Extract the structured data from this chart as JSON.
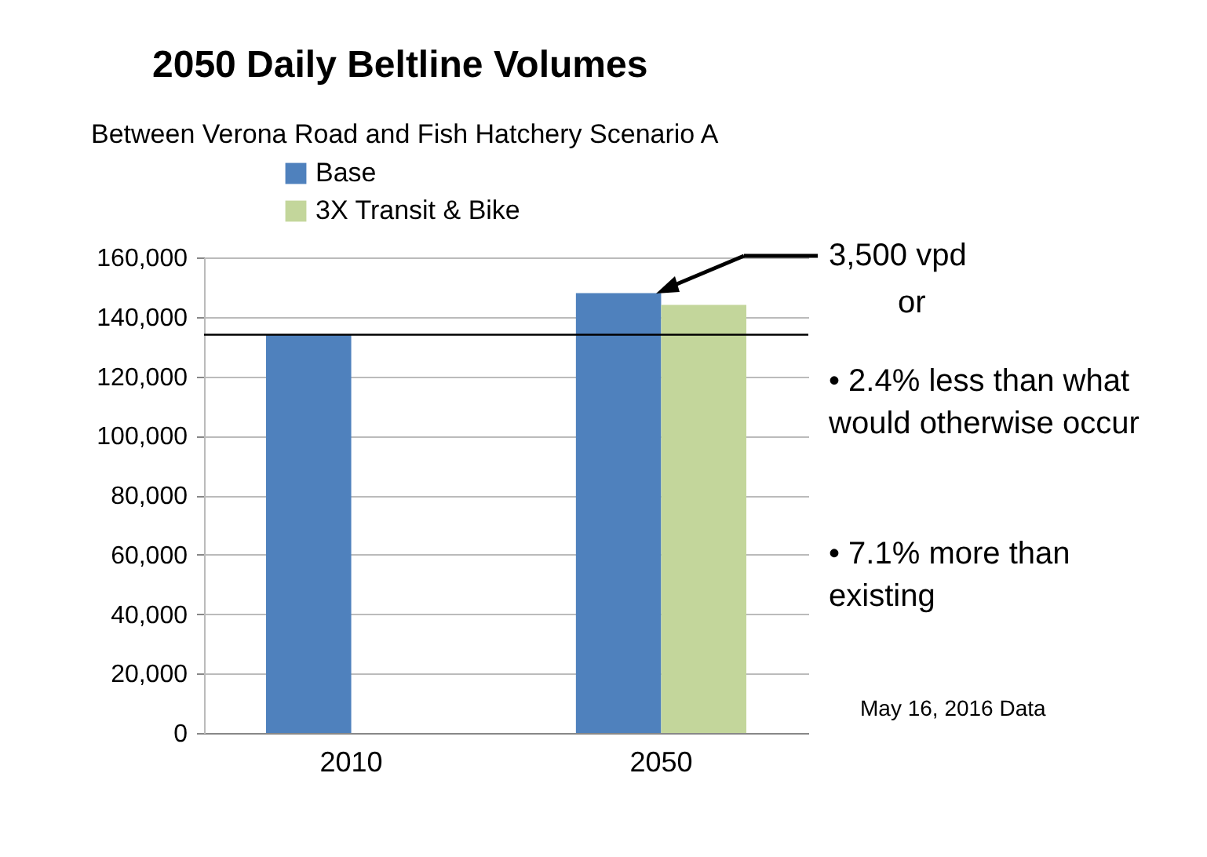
{
  "chart_data": {
    "type": "bar",
    "title": "2050 Daily Beltline Volumes",
    "subtitle": "Between Verona Road and Fish Hatchery Scenario A",
    "categories": [
      "2010",
      "2050"
    ],
    "series": [
      {
        "name": "Base",
        "color": "#4f81bd",
        "values": [
          134000,
          148000
        ]
      },
      {
        "name": "3X Transit & Bike",
        "color": "#c3d69b",
        "values": [
          null,
          144000
        ]
      }
    ],
    "ylim": [
      0,
      160000
    ],
    "yticks": [
      0,
      {
        "value": 20000,
        "label": "20,000"
      },
      {
        "value": 40000,
        "label": "40,000"
      },
      {
        "value": 60000,
        "label": "60,000"
      },
      {
        "value": 80000,
        "label": "80,000"
      },
      {
        "value": 100000,
        "label": "100,000"
      },
      {
        "value": 120000,
        "label": "120,000"
      },
      {
        "value": 140000,
        "label": "140,000"
      },
      {
        "value": 160000,
        "label": "160,000"
      }
    ],
    "grid": "y",
    "legend": "top left",
    "ref_lines": [
      {
        "axis": "y",
        "value": 134000,
        "color": "#000000"
      }
    ],
    "annotations": [
      "3,500 vpd",
      "or",
      "• 2.4% less than what would otherwise occur",
      "• 7.1% more than existing",
      "May 16, 2016 Data"
    ]
  }
}
